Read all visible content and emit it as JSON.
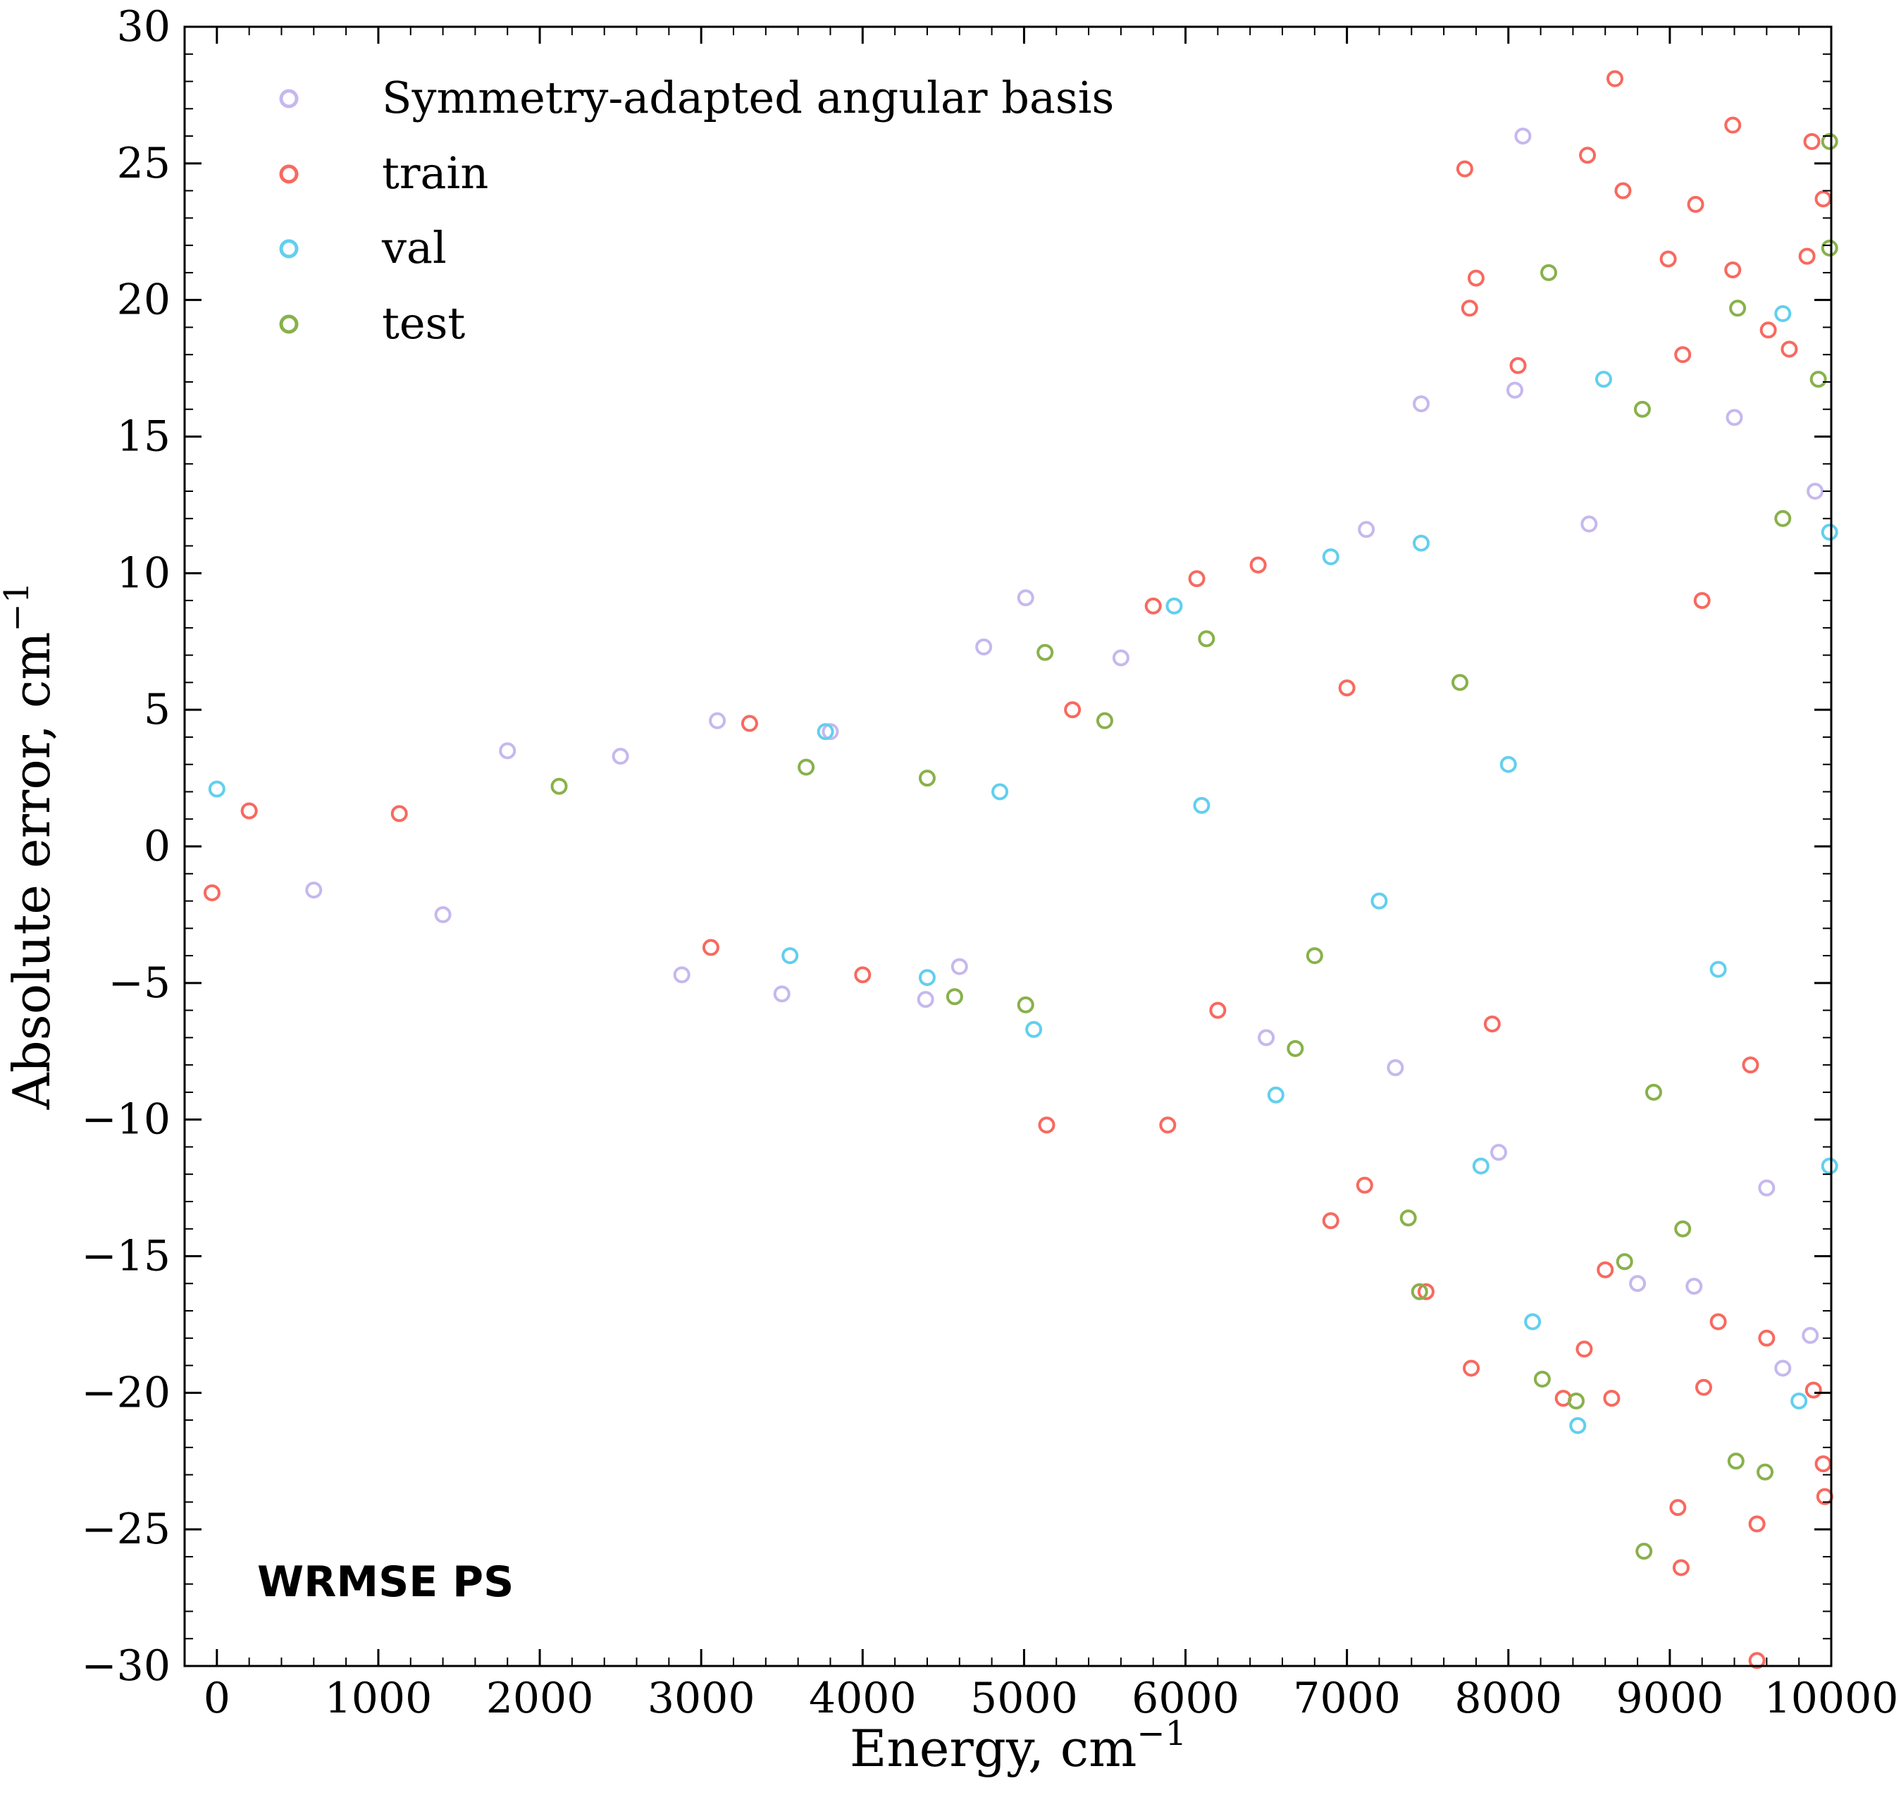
{
  "chart_data": {
    "type": "scatter",
    "title": "",
    "xlabel": "Energy, cm",
    "xlabel_superscript": "−1",
    "ylabel": "Absolute error, cm",
    "ylabel_superscript": "−1",
    "xlim": [
      -200,
      10000
    ],
    "ylim": [
      -30,
      30
    ],
    "x_ticks": [
      0,
      1000,
      2000,
      3000,
      4000,
      5000,
      6000,
      7000,
      8000,
      9000,
      10000
    ],
    "x_tick_labels": [
      "0",
      "1000",
      "2000",
      "3000",
      "4000",
      "5000",
      "6000",
      "7000",
      "8000",
      "9000",
      "10000"
    ],
    "y_ticks": [
      30,
      25,
      20,
      15,
      10,
      5,
      0,
      -5,
      -10,
      -15,
      -20,
      -25,
      -30
    ],
    "y_tick_labels": [
      "30",
      "25",
      "20",
      "15",
      "10",
      "5",
      "0",
      "−5",
      "−10",
      "−15",
      "−20",
      "−25",
      "−30"
    ],
    "grid": false,
    "legend_position": "top-left",
    "annotation": "WRMSE PS",
    "series": [
      {
        "name": "Symmetry-adapted angular basis",
        "color": "#c6b8ee",
        "points": [
          [
            8090,
            26
          ],
          [
            7460,
            16.2
          ],
          [
            8040,
            16.7
          ],
          [
            5010,
            9.1
          ],
          [
            4750,
            7.3
          ],
          [
            7120,
            11.6
          ],
          [
            7940,
            -11.2
          ],
          [
            9150,
            -16.1
          ],
          [
            2880,
            -4.7
          ],
          [
            3500,
            -5.4
          ],
          [
            4390,
            -5.6
          ],
          [
            1400,
            -2.5
          ],
          [
            1800,
            3.5
          ],
          [
            3100,
            4.6
          ],
          [
            3800,
            4.2
          ],
          [
            6500,
            -7.0
          ],
          [
            8800,
            -16.0
          ],
          [
            9700,
            -19.1
          ],
          [
            9870,
            -17.9
          ],
          [
            9400,
            15.7
          ],
          [
            600,
            -1.6
          ],
          [
            2500,
            3.3
          ],
          [
            4600,
            -4.4
          ],
          [
            5600,
            6.9
          ],
          [
            7300,
            -8.1
          ],
          [
            8500,
            11.8
          ],
          [
            9600,
            -12.5
          ],
          [
            9900,
            13.0
          ]
        ]
      },
      {
        "name": "train",
        "color": "#f8695f",
        "points": [
          [
            8660,
            28.1
          ],
          [
            9390,
            26.4
          ],
          [
            9880,
            25.8
          ],
          [
            8490,
            25.3
          ],
          [
            7730,
            24.8
          ],
          [
            9160,
            23.5
          ],
          [
            9950,
            23.7
          ],
          [
            8710,
            24.0
          ],
          [
            9850,
            21.6
          ],
          [
            9390,
            21.1
          ],
          [
            7800,
            20.8
          ],
          [
            8990,
            21.5
          ],
          [
            7760,
            19.7
          ],
          [
            9610,
            18.9
          ],
          [
            8060,
            17.6
          ],
          [
            9080,
            18.0
          ],
          [
            9740,
            18.2
          ],
          [
            5140,
            -10.2
          ],
          [
            5890,
            -10.2
          ],
          [
            7490,
            -16.3
          ],
          [
            7770,
            -19.1
          ],
          [
            8470,
            -18.4
          ],
          [
            8340,
            -20.2
          ],
          [
            8640,
            -20.2
          ],
          [
            9210,
            -19.8
          ],
          [
            9890,
            -19.9
          ],
          [
            9600,
            -18.0
          ],
          [
            9050,
            -24.2
          ],
          [
            9070,
            -26.4
          ],
          [
            9540,
            -24.8
          ],
          [
            9540,
            -29.8
          ],
          [
            9950,
            -22.6
          ],
          [
            9960,
            -23.8
          ],
          [
            6070,
            9.8
          ],
          [
            6450,
            10.3
          ],
          [
            5800,
            8.8
          ],
          [
            3300,
            4.5
          ],
          [
            3060,
            -3.7
          ],
          [
            4000,
            -4.7
          ],
          [
            1130,
            1.2
          ],
          [
            6900,
            -13.7
          ],
          [
            7110,
            -12.4
          ],
          [
            8600,
            -15.5
          ],
          [
            9300,
            -17.4
          ],
          [
            5300,
            5.0
          ],
          [
            6200,
            -6.0
          ],
          [
            7000,
            5.8
          ],
          [
            7900,
            -6.5
          ],
          [
            9200,
            9.0
          ],
          [
            9500,
            -8.0
          ],
          [
            200,
            1.3
          ],
          [
            -30,
            -1.7
          ]
        ]
      },
      {
        "name": "val",
        "color": "#62cfee",
        "points": [
          [
            8590,
            17.1
          ],
          [
            9700,
            19.5
          ],
          [
            9990,
            11.5
          ],
          [
            7460,
            11.1
          ],
          [
            5930,
            8.8
          ],
          [
            6900,
            10.6
          ],
          [
            8430,
            -21.2
          ],
          [
            8150,
            -17.4
          ],
          [
            9800,
            -20.3
          ],
          [
            6560,
            -9.1
          ],
          [
            5060,
            -6.7
          ],
          [
            4400,
            -4.8
          ],
          [
            3550,
            -4.0
          ],
          [
            3770,
            4.2
          ],
          [
            0,
            2.1
          ],
          [
            9990,
            -11.7
          ],
          [
            7830,
            -11.7
          ],
          [
            4850,
            2.0
          ],
          [
            6100,
            1.5
          ],
          [
            7200,
            -2.0
          ],
          [
            8000,
            3.0
          ],
          [
            9300,
            -4.5
          ]
        ]
      },
      {
        "name": "test",
        "color": "#88b14b",
        "points": [
          [
            9990,
            25.8
          ],
          [
            9990,
            21.9
          ],
          [
            8250,
            21.0
          ],
          [
            9420,
            19.7
          ],
          [
            8830,
            16.0
          ],
          [
            9920,
            17.1
          ],
          [
            5130,
            7.1
          ],
          [
            6130,
            7.6
          ],
          [
            8840,
            -25.8
          ],
          [
            9590,
            -22.9
          ],
          [
            9410,
            -22.5
          ],
          [
            8210,
            -19.5
          ],
          [
            8420,
            -20.3
          ],
          [
            7380,
            -13.6
          ],
          [
            7450,
            -16.3
          ],
          [
            9080,
            -14.0
          ],
          [
            8720,
            -15.2
          ],
          [
            6680,
            -7.4
          ],
          [
            4570,
            -5.5
          ],
          [
            5010,
            -5.8
          ],
          [
            2120,
            2.2
          ],
          [
            3650,
            2.9
          ],
          [
            4400,
            2.5
          ],
          [
            5500,
            4.6
          ],
          [
            6800,
            -4.0
          ],
          [
            7700,
            6.0
          ],
          [
            8900,
            -9.0
          ],
          [
            9700,
            12.0
          ]
        ]
      }
    ]
  }
}
